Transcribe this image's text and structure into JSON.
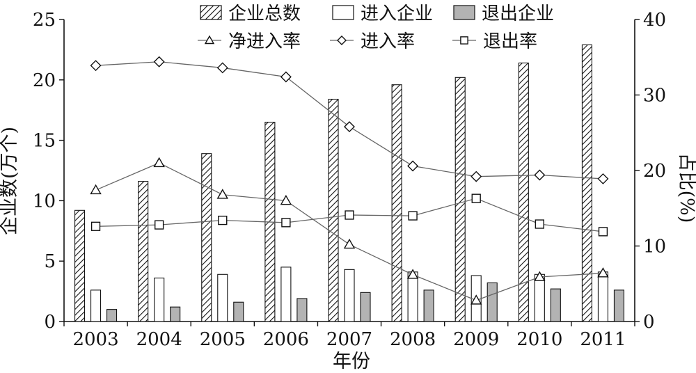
{
  "chart_data": {
    "type": "bar",
    "xlabel": "年份",
    "ylabel_left": "企业数(万个)",
    "ylabel_right": "占比(%)",
    "categories": [
      "2003",
      "2004",
      "2005",
      "2006",
      "2007",
      "2008",
      "2009",
      "2010",
      "2011"
    ],
    "ylim_left": [
      0,
      25
    ],
    "yticks_left": [
      0,
      5,
      10,
      15,
      20,
      25
    ],
    "ylim_right": [
      0,
      40
    ],
    "yticks_right": [
      0,
      10,
      20,
      30,
      40
    ],
    "grid": false,
    "legend_position": "top",
    "bar_series": [
      {
        "name": "企业总数",
        "axis": "left",
        "style": "hatched",
        "values": [
          9.2,
          11.6,
          13.9,
          16.5,
          18.4,
          19.6,
          20.2,
          21.4,
          22.9
        ]
      },
      {
        "name": "进入企业",
        "axis": "left",
        "style": "white",
        "values": [
          2.6,
          3.6,
          3.9,
          4.5,
          4.3,
          4.1,
          3.8,
          3.9,
          4.1
        ]
      },
      {
        "name": "退出企业",
        "axis": "left",
        "style": "gray",
        "values": [
          1.0,
          1.2,
          1.6,
          1.9,
          2.4,
          2.6,
          3.2,
          2.7,
          2.6
        ]
      }
    ],
    "line_series": [
      {
        "name": "净进入率",
        "axis": "right",
        "marker": "triangle",
        "values": [
          17.4,
          21.0,
          16.8,
          16.0,
          10.2,
          6.2,
          2.8,
          5.9,
          6.4
        ]
      },
      {
        "name": "进入率",
        "axis": "right",
        "marker": "diamond",
        "values": [
          33.9,
          34.4,
          33.6,
          32.4,
          25.8,
          20.6,
          19.2,
          19.4,
          18.9
        ]
      },
      {
        "name": "退出率",
        "axis": "right",
        "marker": "square",
        "values": [
          12.6,
          12.8,
          13.4,
          13.1,
          14.1,
          14.0,
          16.3,
          12.9,
          11.9
        ]
      }
    ]
  }
}
